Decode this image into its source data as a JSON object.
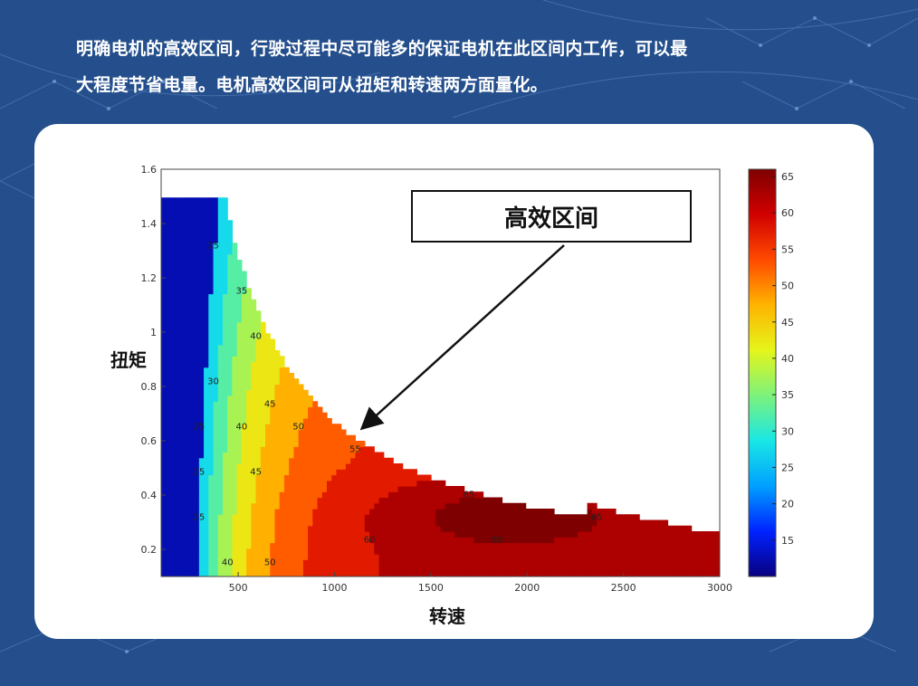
{
  "intro": {
    "line1": "明确电机的高效区间，行驶过程中尽可能多的保证电机在此区间内工作，可以最",
    "line2": "大程度节省电量。电机高效区间可从扭矩和转速两方面量化。"
  },
  "chart_data": {
    "type": "heatmap",
    "subtype": "contour",
    "xlabel": "转速",
    "ylabel": "扭矩",
    "x_ticks": [
      500,
      1000,
      1500,
      2000,
      2500,
      3000
    ],
    "y_ticks": [
      0.2,
      0.4,
      0.6,
      0.8,
      1,
      1.2,
      1.4,
      1.6
    ],
    "xlim": [
      100,
      3000
    ],
    "ylim": [
      0.1,
      1.6
    ],
    "max_torque_plateau": 1.5,
    "colorbar": {
      "ticks": [
        15,
        20,
        25,
        30,
        35,
        40,
        45,
        50,
        55,
        60,
        65
      ],
      "range": [
        10,
        66
      ],
      "colors": [
        "#08007f",
        "#0022ff",
        "#00a0ff",
        "#19e7e5",
        "#7cf27c",
        "#e5f51a",
        "#ffb300",
        "#ff4a00",
        "#d10000",
        "#7f0000"
      ]
    },
    "contour_levels": [
      25,
      30,
      35,
      40,
      45,
      50,
      55,
      60,
      65
    ],
    "annotation": {
      "text": "高效区间",
      "arrow_target": [
        1150,
        0.65
      ]
    }
  },
  "colors": {
    "background": "#244f8c",
    "card": "#ffffff"
  }
}
